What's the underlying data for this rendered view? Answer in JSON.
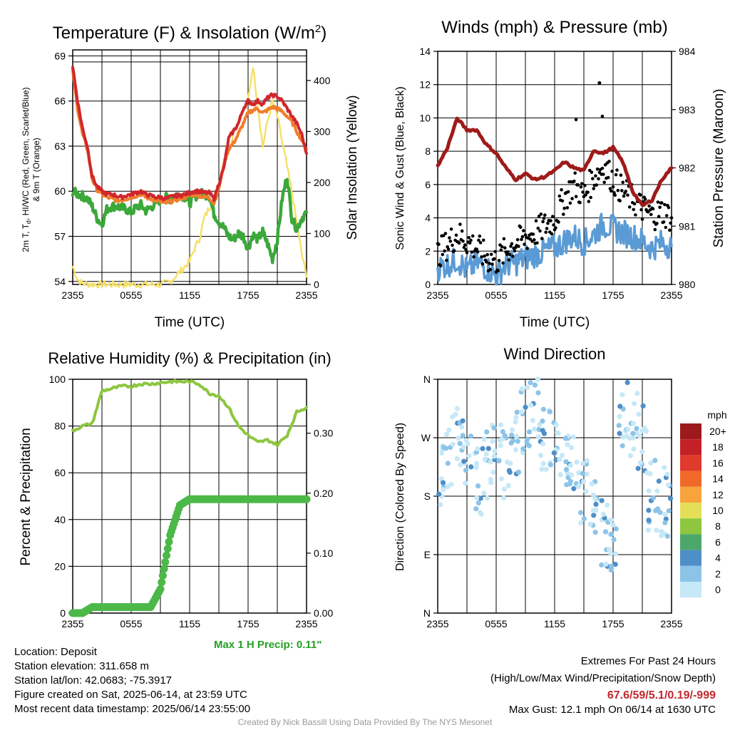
{
  "colors": {
    "temp": "#d0272c",
    "dew_green": "#3ba83a",
    "temp9m": "#f07e2c",
    "solar": "#f5e06a",
    "wind": "#5b9bd5",
    "gust": "#000000",
    "pressure": "#9e1b1b",
    "rh": "#8dc63f",
    "precip": "#4cb848",
    "max_precip": "#22a022",
    "extremes": "#c0282e",
    "credit": "#9a9a9a"
  },
  "info": {
    "location": "Location: Deposit",
    "elevation": "Station elevation: 311.658 m",
    "latlon": "Station lat/lon: 42.0683; -75.3917",
    "created": "Figure created on Sat, 2025-06-14, at 23:59 UTC",
    "recent": "Most recent data timestamp: 2025/06/14 23:55:00",
    "max_precip": "Max 1 H Precip: 0.11\"",
    "extremes_title": "Extremes For Past 24 Hours",
    "extremes_subtitle": "(High/Low/Max Wind/Precipitation/Snow Depth)",
    "extremes_values": "67.6/59/5.1/0.19/-999",
    "max_gust": "Max Gust: 12.1 mph On 06/14 at 1630 UTC",
    "credit": "Created By Nick Bassill Using Data Provided By The NYS Mesonet"
  },
  "chart_data": [
    {
      "type": "line",
      "title": "Temperature (F) & Insolation (W/m",
      "title_sup": "2",
      "title_close": ")",
      "xlabel": "Time (UTC)",
      "ylabel_line1": "2m T, T",
      "ylabel_sub": "d",
      "ylabel_rest": ", HI/WC (Red, Green, Scarlet/Blue)",
      "ylabel_line2": "& 9m T (Orange)",
      "ylabel_right": "Solar Insolation (Yellow)",
      "x_ticks": [
        "2355",
        "0555",
        "1155",
        "1755",
        "2355"
      ],
      "ylim": [
        53.8,
        69.4
      ],
      "y_ticks": [
        54,
        57,
        60,
        63,
        66,
        69
      ],
      "y2lim": [
        0,
        460
      ],
      "y2_ticks": [
        0,
        100,
        200,
        300,
        400
      ],
      "x": [
        0,
        0.5,
        1,
        1.5,
        2,
        2.5,
        3,
        3.5,
        4,
        4.5,
        5,
        5.5,
        6,
        6.5,
        7,
        7.5,
        8,
        8.5,
        9,
        9.5,
        10,
        10.5,
        11,
        11.5,
        12,
        12.5,
        13,
        13.5,
        14,
        14.5,
        15,
        15.5,
        16,
        16.5,
        17,
        17.5,
        18,
        18.5,
        19,
        19.5,
        20,
        20.5,
        21,
        21.5,
        22,
        22.5,
        23,
        23.5,
        24
      ],
      "series": [
        {
          "name": "Red",
          "axis": "left",
          "values": [
            68.3,
            66.0,
            64.2,
            63.0,
            61.0,
            60.3,
            60.0,
            59.8,
            59.8,
            59.7,
            59.6,
            59.7,
            59.8,
            59.9,
            60.0,
            59.8,
            59.7,
            59.6,
            59.6,
            59.5,
            59.6,
            59.7,
            59.7,
            59.8,
            59.9,
            60.0,
            60.0,
            59.9,
            59.9,
            59.5,
            60.5,
            61.5,
            63.5,
            64.0,
            64.5,
            65.5,
            66.0,
            65.8,
            66.0,
            65.8,
            66.2,
            66.4,
            66.3,
            66.0,
            65.5,
            65.0,
            64.5,
            63.8,
            62.5
          ]
        },
        {
          "name": "Orange",
          "axis": "left",
          "values": [
            68.0,
            65.5,
            63.8,
            62.8,
            60.8,
            60.1,
            59.8,
            59.6,
            59.5,
            59.4,
            59.4,
            59.5,
            59.6,
            59.7,
            59.8,
            59.6,
            59.5,
            59.4,
            59.3,
            59.2,
            59.3,
            59.4,
            59.5,
            59.6,
            59.7,
            59.8,
            59.7,
            59.6,
            59.6,
            59.2,
            60.2,
            61.8,
            62.8,
            63.2,
            63.8,
            64.5,
            65.2,
            65.4,
            65.5,
            65.2,
            65.4,
            65.6,
            65.5,
            65.3,
            65.0,
            64.6,
            64.0,
            63.4,
            62.8
          ]
        },
        {
          "name": "Green",
          "axis": "left",
          "values": [
            60.0,
            59.8,
            59.7,
            59.5,
            59.0,
            58.2,
            57.8,
            58.8,
            59.0,
            59.0,
            58.9,
            58.8,
            58.6,
            58.9,
            59.1,
            58.7,
            58.9,
            59.2,
            59.4,
            59.6,
            59.5,
            59.7,
            59.8,
            59.6,
            59.2,
            59.6,
            59.9,
            59.8,
            59.7,
            58.5,
            58.0,
            57.6,
            57.0,
            56.8,
            57.2,
            57.0,
            56.2,
            57.1,
            56.8,
            57.3,
            56.5,
            55.5,
            56.8,
            59.5,
            61.0,
            58.2,
            57.5,
            58.2,
            58.6
          ]
        },
        {
          "name": "Yellow",
          "axis": "right",
          "values": [
            35,
            10,
            2,
            1,
            0,
            0,
            0,
            0,
            0,
            0,
            0,
            0,
            0,
            0,
            0,
            0,
            0,
            0,
            0,
            2,
            6,
            15,
            25,
            35,
            45,
            70,
            90,
            130,
            150,
            160,
            200,
            240,
            260,
            300,
            320,
            340,
            360,
            430,
            350,
            270,
            320,
            360,
            330,
            280,
            230,
            180,
            120,
            60,
            15
          ]
        }
      ]
    },
    {
      "type": "line",
      "title": "Winds (mph) & Pressure (mb)",
      "xlabel": "Time (UTC)",
      "ylabel": "Sonic Wind & Gust (Blue, Black)",
      "ylabel_right": "Station Pressure (Maroon)",
      "x_ticks": [
        "2355",
        "0555",
        "1155",
        "1755",
        "2355"
      ],
      "ylim": [
        0,
        14
      ],
      "y_ticks": [
        0,
        2,
        4,
        6,
        8,
        10,
        12,
        14
      ],
      "y2lim": [
        980,
        984
      ],
      "y2_ticks": [
        980,
        981,
        982,
        983,
        984
      ],
      "x": [
        0,
        1,
        2,
        3,
        4,
        5,
        6,
        7,
        8,
        9,
        10,
        11,
        12,
        13,
        14,
        15,
        16,
        17,
        18,
        19,
        20,
        21,
        22,
        23,
        24
      ],
      "series": [
        {
          "name": "Blue",
          "axis": "left",
          "values": [
            1.0,
            1.2,
            1.5,
            0.8,
            1.3,
            1.0,
            0.5,
            1.2,
            1.3,
            1.6,
            1.8,
            2.0,
            2.2,
            2.6,
            2.9,
            2.5,
            3.0,
            3.6,
            3.4,
            3.1,
            2.9,
            2.6,
            2.2,
            2.5,
            2.3
          ]
        },
        {
          "name": "Black",
          "axis": "left",
          "values": [
            1.8,
            2.4,
            3.0,
            2.6,
            2.2,
            1.6,
            1.4,
            2.0,
            2.5,
            2.8,
            3.1,
            3.5,
            3.9,
            5.2,
            6.0,
            5.3,
            6.4,
            7.1,
            6.3,
            5.6,
            5.1,
            4.6,
            4.1,
            4.4,
            4.0
          ]
        },
        {
          "name": "Maroon",
          "axis": "right",
          "values": [
            982.03,
            982.35,
            982.85,
            982.65,
            982.65,
            982.4,
            982.25,
            982.0,
            981.8,
            981.9,
            981.8,
            981.85,
            981.95,
            982.1,
            982.0,
            981.95,
            982.3,
            982.25,
            982.35,
            982.1,
            981.6,
            981.35,
            981.45,
            981.8,
            982.0
          ]
        }
      ],
      "gust_points_max": 12.1
    },
    {
      "type": "line",
      "title": "Relative Humidity (%) & Precipitation (in)",
      "ylabel": "Percent & Precipitation",
      "x_ticks": [
        "2355",
        "0555",
        "1155",
        "1755",
        "2355"
      ],
      "ylim": [
        0,
        100
      ],
      "y_ticks": [
        0,
        20,
        40,
        60,
        80,
        100
      ],
      "y2lim": [
        0,
        0.39
      ],
      "y2_ticks": [
        "0.00",
        "0.10",
        "0.20",
        "0.30"
      ],
      "x": [
        0,
        1,
        2,
        3,
        4,
        5,
        6,
        7,
        8,
        9,
        10,
        11,
        12,
        13,
        14,
        15,
        16,
        17,
        18,
        19,
        20,
        21,
        22,
        23,
        24
      ],
      "series": [
        {
          "name": "RH",
          "axis": "left",
          "values": [
            78,
            80,
            81,
            95,
            96,
            97,
            97,
            98,
            98,
            98.5,
            99,
            99,
            99,
            98,
            94,
            93,
            88,
            80,
            76,
            73,
            74,
            72,
            76,
            86,
            88
          ]
        },
        {
          "name": "Precip",
          "axis": "right",
          "values": [
            0,
            0,
            0.01,
            0.01,
            0.01,
            0.01,
            0.01,
            0.01,
            0.01,
            0.04,
            0.13,
            0.18,
            0.19,
            0.19,
            0.19,
            0.19,
            0.19,
            0.19,
            0.19,
            0.19,
            0.19,
            0.19,
            0.19,
            0.19,
            0.19
          ]
        }
      ]
    },
    {
      "type": "scatter",
      "title": "Wind Direction",
      "ylabel": "Direction (Colored By Speed)",
      "x_ticks": [
        "2355",
        "0555",
        "1155",
        "1755",
        "2355"
      ],
      "y_ticks": [
        "N",
        "E",
        "S",
        "W",
        "N"
      ],
      "ylim": [
        0,
        360
      ],
      "legend_unit": "mph",
      "legend_labels": [
        "0",
        "2",
        "4",
        "6",
        "8",
        "10",
        "12",
        "14",
        "16",
        "18",
        "20+"
      ],
      "legend_colors": [
        "#c6e8f7",
        "#8cc4e8",
        "#4f8fc8",
        "#4ca86a",
        "#8dc63f",
        "#e5df58",
        "#f8a33c",
        "#f0692a",
        "#e03a2c",
        "#c32127",
        "#9c1a1c"
      ],
      "legend_placement": "right"
    }
  ]
}
